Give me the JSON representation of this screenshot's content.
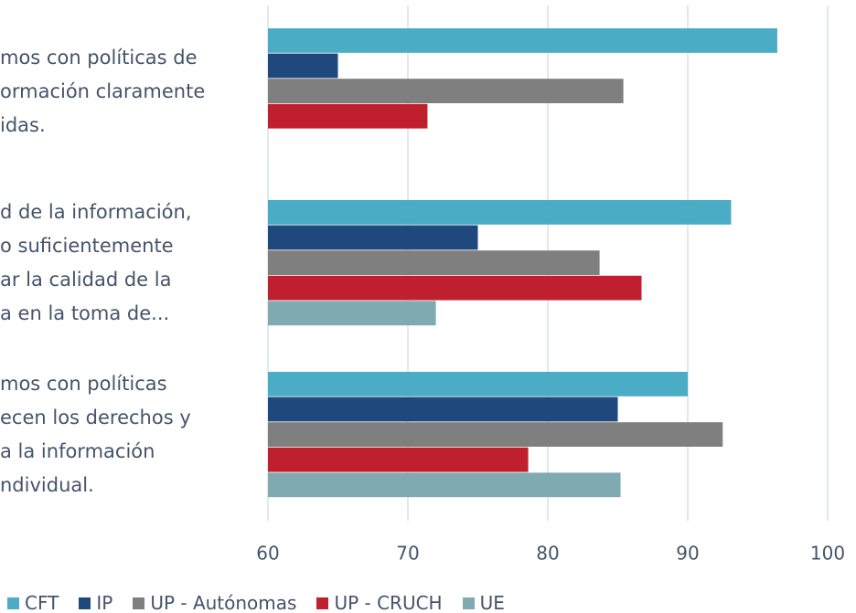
{
  "chart_data": {
    "type": "bar",
    "orientation": "horizontal",
    "categories": [
      "mos con políticas de\normación claramente\nidas.",
      "d de la información,\no suficientemente\nar la calidad de la\na en la toma de...",
      "mos con políticas\necen los derechos y\na la información\nndividual."
    ],
    "series": [
      {
        "name": "CFT",
        "color": "#4bacc6",
        "values": [
          96.4,
          93.1,
          90.0
        ]
      },
      {
        "name": "IP",
        "color": "#1f497d",
        "values": [
          65.0,
          75.0,
          85.0
        ]
      },
      {
        "name": "UP - Autónomas",
        "color": "#7f7f7f",
        "values": [
          85.4,
          83.7,
          92.5
        ]
      },
      {
        "name": "UP - CRUCH",
        "color": "#c0202e",
        "values": [
          71.4,
          86.7,
          78.6
        ]
      },
      {
        "name": "UE",
        "color": "#7faab0",
        "values": [
          null,
          72.0,
          85.2
        ]
      }
    ],
    "xlim": [
      60,
      100
    ],
    "xticks": [
      60,
      70,
      80,
      90,
      100
    ],
    "grid": true,
    "legend": "bottom"
  }
}
